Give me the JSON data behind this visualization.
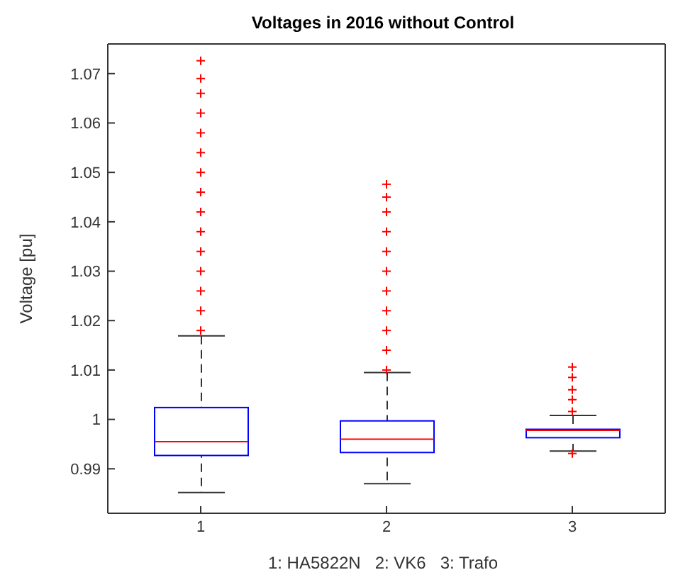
{
  "chart_data": {
    "type": "box",
    "title": "Voltages in 2016 without Control",
    "xlabel": "1: HA5822N   2: VK6   3: Trafo",
    "ylabel": "Voltage [pu]",
    "categories": [
      "1",
      "2",
      "3"
    ],
    "ylim": [
      0.981,
      1.076
    ],
    "yticks": [
      0.99,
      1,
      1.01,
      1.02,
      1.03,
      1.04,
      1.05,
      1.06,
      1.07
    ],
    "marker": "cross",
    "series": [
      {
        "color": "#0000ff",
        "boxes": [
          {
            "low": 0.9852,
            "q1": 0.9927,
            "median": 0.9955,
            "q3": 1.0024,
            "high": 1.0169,
            "outliers": [
              1.018,
              1.022,
              1.026,
              1.03,
              1.034,
              1.038,
              1.042,
              1.046,
              1.05,
              1.054,
              1.058,
              1.062,
              1.066,
              1.069,
              1.0726
            ]
          },
          {
            "low": 0.987,
            "q1": 0.9933,
            "median": 0.996,
            "q3": 0.9997,
            "high": 1.0095,
            "outliers": [
              1.01,
              1.014,
              1.018,
              1.022,
              1.026,
              1.03,
              1.034,
              1.038,
              1.042,
              1.045,
              1.0476
            ]
          },
          {
            "low": 0.9936,
            "q1": 0.9963,
            "median": 0.9978,
            "q3": 0.998,
            "high": 1.0008,
            "outliers": [
              0.9931,
              1.0016,
              1.004,
              1.006,
              1.0085,
              1.0106
            ]
          }
        ]
      }
    ]
  }
}
